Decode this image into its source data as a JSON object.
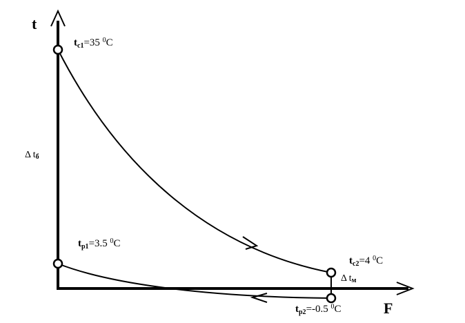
{
  "axes": {
    "y_label": "t",
    "x_label": "F"
  },
  "points": {
    "tc1": {
      "symbol": "t",
      "sub": "c1",
      "value": "=35 ",
      "sup": "0",
      "unit": "C"
    },
    "tp1": {
      "symbol": "t",
      "sub": "p1",
      "value": "=3.5 ",
      "sup": "0",
      "unit": "C"
    },
    "tc2": {
      "symbol": "t",
      "sub": "c2",
      "value": "=4 ",
      "sup": "0",
      "unit": "C"
    },
    "tp2": {
      "symbol": "t",
      "sub": "p2",
      "value": "=-0.5 ",
      "sup": "0",
      "unit": "C"
    }
  },
  "deltas": {
    "big": {
      "symbol": "Δ t",
      "sub": "б"
    },
    "small": {
      "symbol": "Δ t",
      "sub": "м"
    }
  },
  "colors": {
    "stroke": "#000000",
    "background": "#ffffff"
  }
}
